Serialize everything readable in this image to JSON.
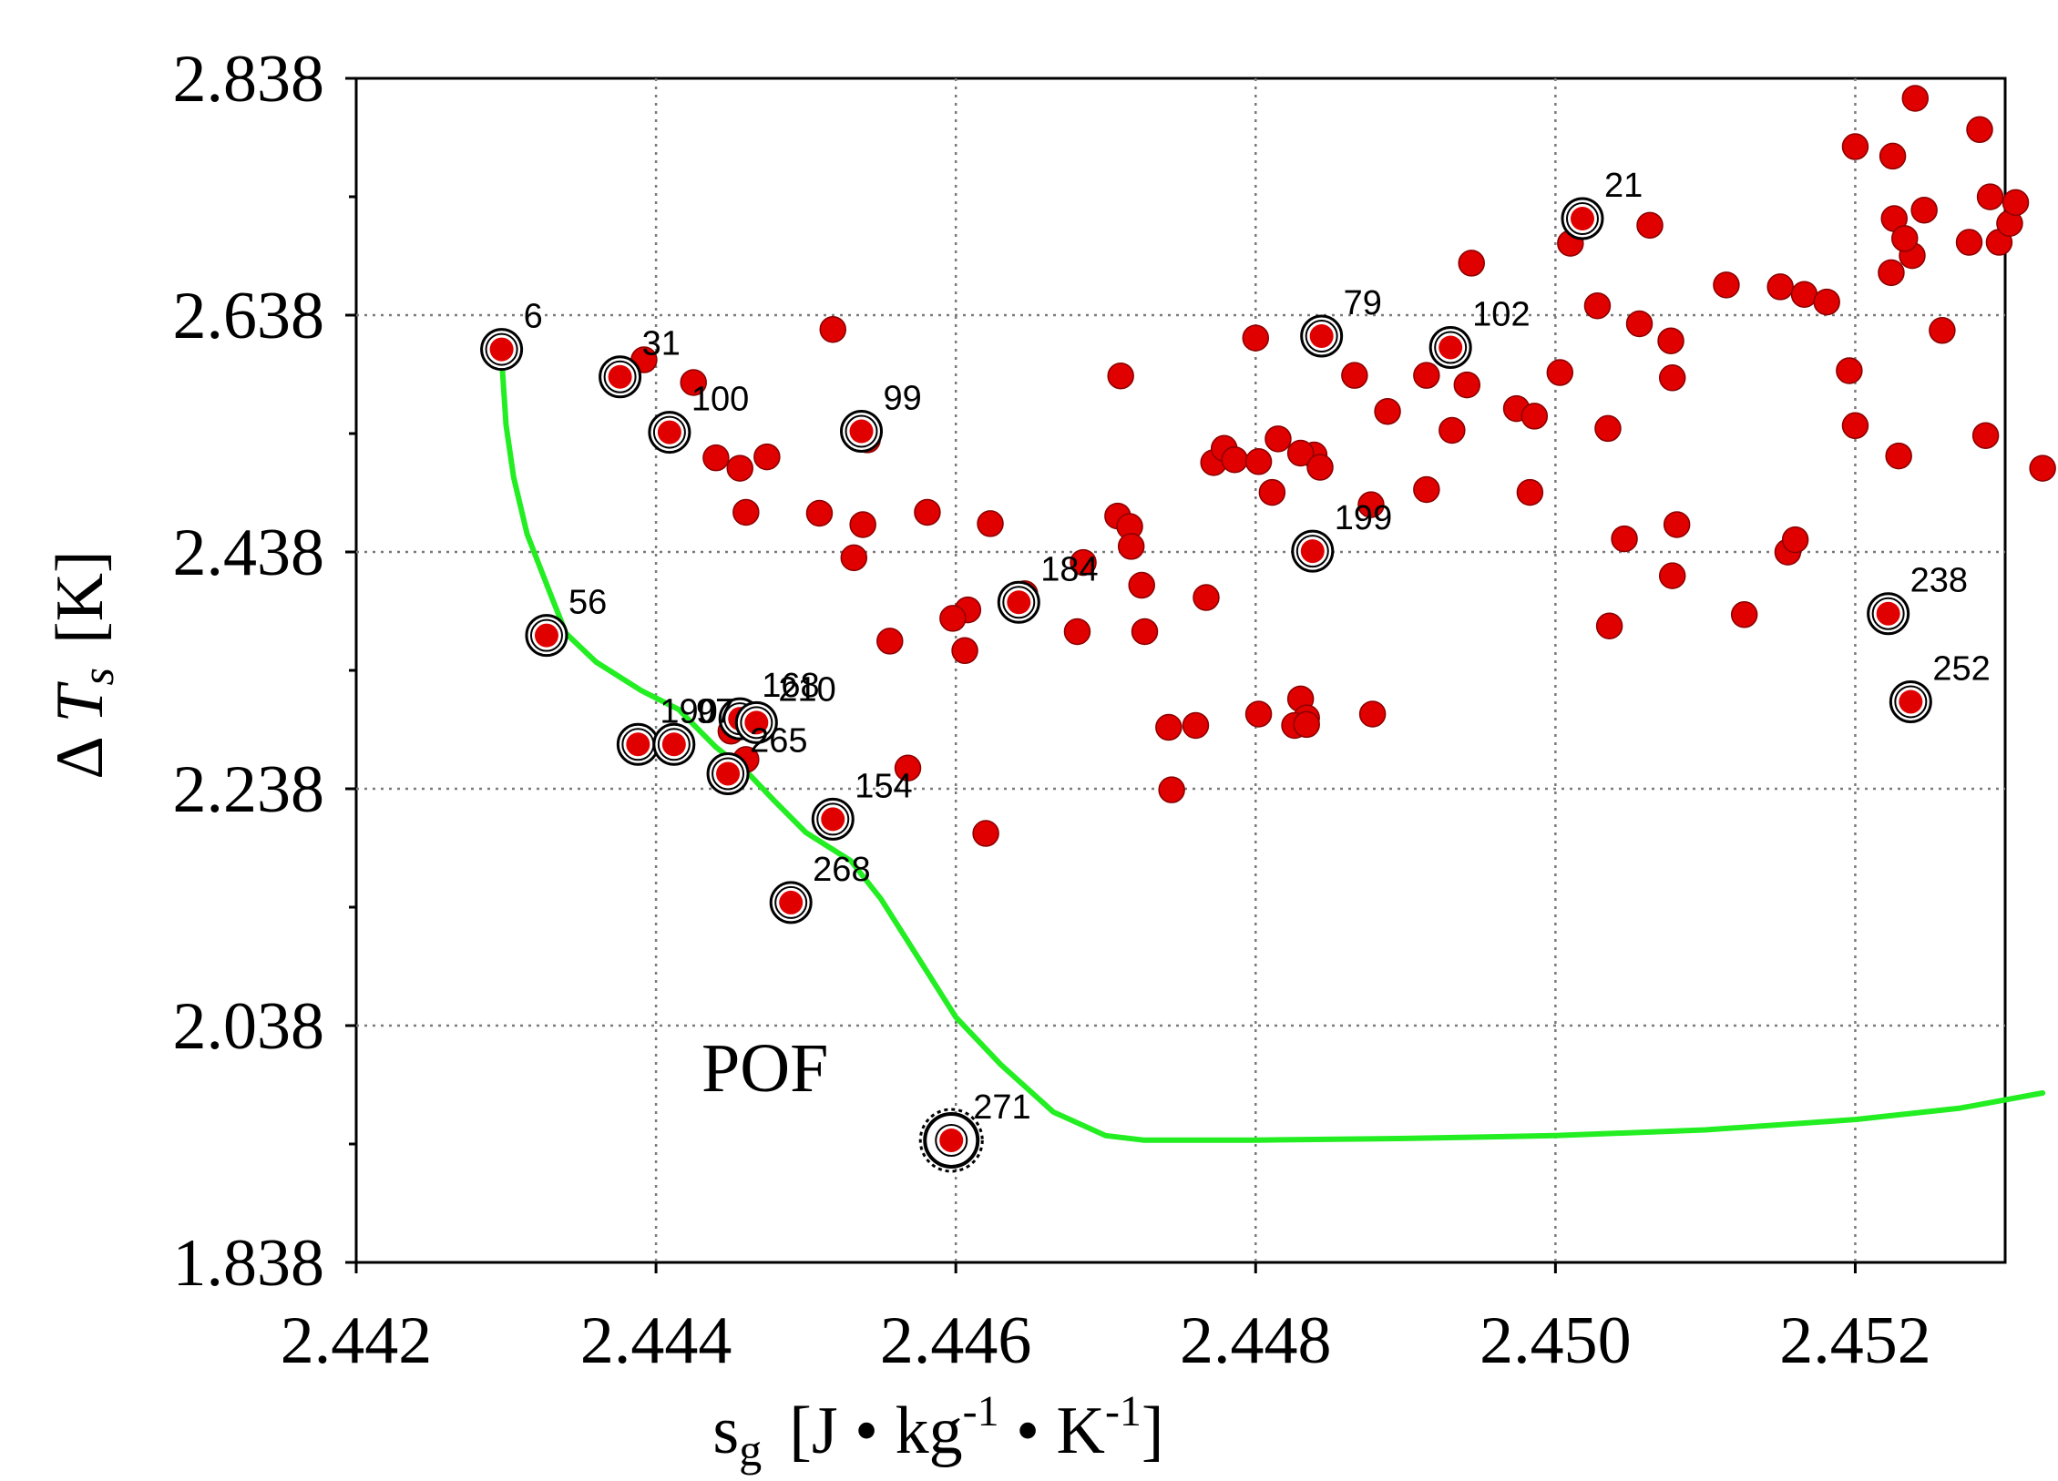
{
  "chart_data": {
    "type": "scatter",
    "xlabel": {
      "base": "s",
      "sub": "g",
      "unit": "[J • kg",
      "exp1": "-1",
      "mid": " • K",
      "exp2": "-1",
      "end": "]"
    },
    "ylabel": {
      "delta": "Δ ",
      "sym": "T",
      "sub": "s",
      "unit": "[K]"
    },
    "xlim": [
      2.442,
      2.453
    ],
    "ylim": [
      1.838,
      2.838
    ],
    "x_ticks": [
      "2.442",
      "2.444",
      "2.446",
      "2.448",
      "2.450",
      "2.452"
    ],
    "y_ticks": [
      "1.838",
      "2.038",
      "2.238",
      "2.438",
      "2.638",
      "2.838"
    ],
    "grid": "dotted",
    "annotation": "POF",
    "colors": {
      "point": "#e00000",
      "front": "#22ee22",
      "ring": "#000000"
    },
    "points": [
      [
        2.44297,
        2.6091
      ],
      [
        2.44374,
        2.5859
      ],
      [
        2.44392,
        2.6003
      ],
      [
        2.44425,
        2.5811
      ],
      [
        2.44406,
        2.5359
      ],
      [
        2.4444,
        2.5175
      ],
      [
        2.44456,
        2.5087
      ],
      [
        2.44474,
        2.5183
      ],
      [
        2.4446,
        2.4715
      ],
      [
        2.44509,
        2.4707
      ],
      [
        2.44518,
        2.6259
      ],
      [
        2.44541,
        2.5327
      ],
      [
        2.44538,
        2.4611
      ],
      [
        2.44532,
        2.4331
      ],
      [
        2.44581,
        2.4715
      ],
      [
        2.44623,
        2.4619
      ],
      [
        2.4471,
        2.5867
      ],
      [
        2.44708,
        2.4683
      ],
      [
        2.44716,
        2.4595
      ],
      [
        2.44772,
        2.5135
      ],
      [
        2.44779,
        2.5255
      ],
      [
        2.44786,
        2.5159
      ],
      [
        2.44815,
        2.5335
      ],
      [
        2.448,
        2.6187
      ],
      [
        2.44802,
        2.5143
      ],
      [
        2.44839,
        2.5199
      ],
      [
        2.4483,
        2.5215
      ],
      [
        2.44843,
        2.5095
      ],
      [
        2.44877,
        2.4779
      ],
      [
        2.44811,
        2.4883
      ],
      [
        2.44866,
        2.5871
      ],
      [
        2.44888,
        2.5567
      ],
      [
        2.44914,
        2.5871
      ],
      [
        2.44914,
        2.4907
      ],
      [
        2.44931,
        2.5407
      ],
      [
        2.44941,
        2.5791
      ],
      [
        2.44944,
        2.6819
      ],
      [
        2.44974,
        2.5591
      ],
      [
        2.44986,
        2.5527
      ],
      [
        2.44983,
        2.4883
      ],
      [
        2.45003,
        2.5895
      ],
      [
        2.4501,
        2.6987
      ],
      [
        2.45028,
        2.6459
      ],
      [
        2.45035,
        2.5423
      ],
      [
        2.45046,
        2.4491
      ],
      [
        2.45056,
        2.6307
      ],
      [
        2.45063,
        2.7139
      ],
      [
        2.45077,
        2.6163
      ],
      [
        2.45078,
        2.5851
      ],
      [
        2.45081,
        2.4611
      ],
      [
        2.45078,
        2.4179
      ],
      [
        2.45036,
        2.3755
      ],
      [
        2.45114,
        2.6635
      ],
      [
        2.45126,
        2.3851
      ],
      [
        2.4515,
        2.6619
      ],
      [
        2.45155,
        2.4379
      ],
      [
        2.45166,
        2.6555
      ],
      [
        2.4516,
        2.4483
      ],
      [
        2.45181,
        2.6491
      ],
      [
        2.45196,
        2.5911
      ],
      [
        2.452,
        2.5447
      ],
      [
        2.452,
        2.7803
      ],
      [
        2.45225,
        2.7723
      ],
      [
        2.45238,
        2.6883
      ],
      [
        2.45224,
        2.6739
      ],
      [
        2.45226,
        2.7195
      ],
      [
        2.45233,
        2.7027
      ],
      [
        2.45229,
        2.5191
      ],
      [
        2.4524,
        2.8211
      ],
      [
        2.45246,
        2.7267
      ],
      [
        2.45258,
        2.6251
      ],
      [
        2.45283,
        2.7947
      ],
      [
        2.45276,
        2.6995
      ],
      [
        2.4529,
        2.7379
      ],
      [
        2.45296,
        2.6995
      ],
      [
        2.45303,
        2.7155
      ],
      [
        2.45307,
        2.7331
      ],
      [
        2.45287,
        2.5363
      ],
      [
        2.45325,
        2.5087
      ],
      [
        2.44724,
        2.4099
      ],
      [
        2.44717,
        2.4427
      ],
      [
        2.44767,
        2.3995
      ],
      [
        2.44726,
        2.3707
      ],
      [
        2.44685,
        2.4291
      ],
      [
        2.44646,
        2.4027
      ],
      [
        2.44608,
        2.3891
      ],
      [
        2.44598,
        2.3819
      ],
      [
        2.44556,
        2.3627
      ],
      [
        2.44606,
        2.3547
      ],
      [
        2.44681,
        2.3707
      ],
      [
        2.44744,
        2.2371
      ],
      [
        2.44742,
        2.2899
      ],
      [
        2.4476,
        2.2915
      ],
      [
        2.44802,
        2.3011
      ],
      [
        2.4483,
        2.3139
      ],
      [
        2.44834,
        2.2979
      ],
      [
        2.44826,
        2.2915
      ],
      [
        2.44878,
        2.3011
      ],
      [
        2.44834,
        2.2923
      ],
      [
        2.4462,
        2.2003
      ],
      [
        2.44568,
        2.2555
      ],
      [
        2.4445,
        2.2867
      ],
      [
        2.4446,
        2.2627
      ]
    ],
    "labeled_points": [
      {
        "label": "6",
        "x": 2.44297,
        "y": 2.6091
      },
      {
        "label": "31",
        "x": 2.44376,
        "y": 2.5859
      },
      {
        "label": "100",
        "x": 2.44409,
        "y": 2.5391
      },
      {
        "label": "99",
        "x": 2.44537,
        "y": 2.5399
      },
      {
        "label": "79",
        "x": 2.44844,
        "y": 2.6203
      },
      {
        "label": "102",
        "x": 2.4493,
        "y": 2.6107
      },
      {
        "label": "21",
        "x": 2.45018,
        "y": 2.7195
      },
      {
        "label": "199",
        "x": 2.44838,
        "y": 2.4387
      },
      {
        "label": "184",
        "x": 2.44642,
        "y": 2.3955
      },
      {
        "label": "56",
        "x": 2.44327,
        "y": 2.3675
      },
      {
        "label": "190",
        "x": 2.44388,
        "y": 2.2755
      },
      {
        "label": "97",
        "x": 2.44412,
        "y": 2.2755
      },
      {
        "label": "168",
        "x": 2.44456,
        "y": 2.2971
      },
      {
        "label": "210",
        "x": 2.44467,
        "y": 2.2939
      },
      {
        "label": "265",
        "x": 2.44448,
        "y": 2.2507
      },
      {
        "label": "154",
        "x": 2.44518,
        "y": 2.2123
      },
      {
        "label": "268",
        "x": 2.4449,
        "y": 2.1419
      },
      {
        "label": "271",
        "x": 2.44597,
        "y": 1.9411
      },
      {
        "label": "238",
        "x": 2.45222,
        "y": 2.3859
      },
      {
        "label": "252",
        "x": 2.45237,
        "y": 2.3115
      }
    ],
    "front_curve": [
      [
        2.44297,
        2.6021
      ],
      [
        2.443,
        2.5451
      ],
      [
        2.44305,
        2.5011
      ],
      [
        2.44314,
        2.4531
      ],
      [
        2.4433,
        2.4011
      ],
      [
        2.4434,
        2.3691
      ],
      [
        2.4436,
        2.3451
      ],
      [
        2.4439,
        2.3211
      ],
      [
        2.44415,
        2.3051
      ],
      [
        2.4444,
        2.2731
      ],
      [
        2.4446,
        2.2531
      ],
      [
        2.44478,
        2.2291
      ],
      [
        2.445,
        2.2011
      ],
      [
        2.4453,
        2.1771
      ],
      [
        2.4455,
        2.1451
      ],
      [
        2.4458,
        2.0851
      ],
      [
        2.446,
        2.0451
      ],
      [
        2.4463,
        2.0051
      ],
      [
        2.44665,
        1.9651
      ],
      [
        2.447,
        1.9451
      ],
      [
        2.44725,
        1.9413
      ],
      [
        2.448,
        1.9413
      ],
      [
        2.449,
        1.9427
      ],
      [
        2.45,
        1.9451
      ],
      [
        2.451,
        1.9499
      ],
      [
        2.452,
        1.9587
      ],
      [
        2.4527,
        1.9683
      ],
      [
        2.45325,
        1.9811
      ]
    ]
  }
}
